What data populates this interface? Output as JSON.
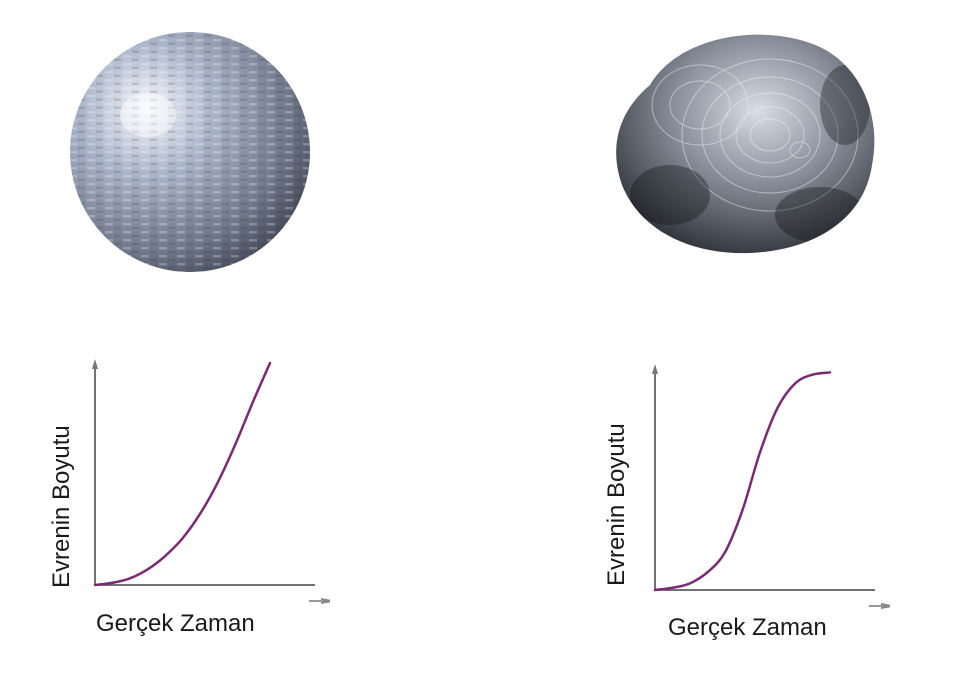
{
  "chart_data": [
    {
      "type": "line",
      "title": "",
      "xlabel": "Gerçek Zaman",
      "ylabel": "Evrenin Boyutu",
      "xlim": [
        0,
        1
      ],
      "ylim": [
        0,
        1
      ],
      "grid": false,
      "series": [
        {
          "color": "#7a2a72",
          "x": [
            0,
            0.1,
            0.2,
            0.3,
            0.4,
            0.5,
            0.6,
            0.7,
            0.8,
            0.9,
            1.0
          ],
          "y": [
            0,
            0.01,
            0.03,
            0.07,
            0.13,
            0.21,
            0.32,
            0.46,
            0.63,
            0.82,
            1.0
          ]
        }
      ]
    },
    {
      "type": "line",
      "title": "",
      "xlabel": "Gerçek Zaman",
      "ylabel": "Evrenin Boyutu",
      "xlim": [
        0,
        1
      ],
      "ylim": [
        0,
        1
      ],
      "grid": false,
      "series": [
        {
          "color": "#7a2a72",
          "x": [
            0,
            0.1,
            0.2,
            0.3,
            0.4,
            0.5,
            0.6,
            0.7,
            0.8,
            0.9,
            1.0
          ],
          "y": [
            0,
            0.01,
            0.03,
            0.08,
            0.17,
            0.36,
            0.62,
            0.82,
            0.93,
            0.97,
            0.98
          ]
        }
      ]
    }
  ],
  "colors": {
    "curve": "#7a2a72",
    "axis": "#444444",
    "sphere_light": "#e8ecf4",
    "sphere_dark": "#4a5060"
  }
}
